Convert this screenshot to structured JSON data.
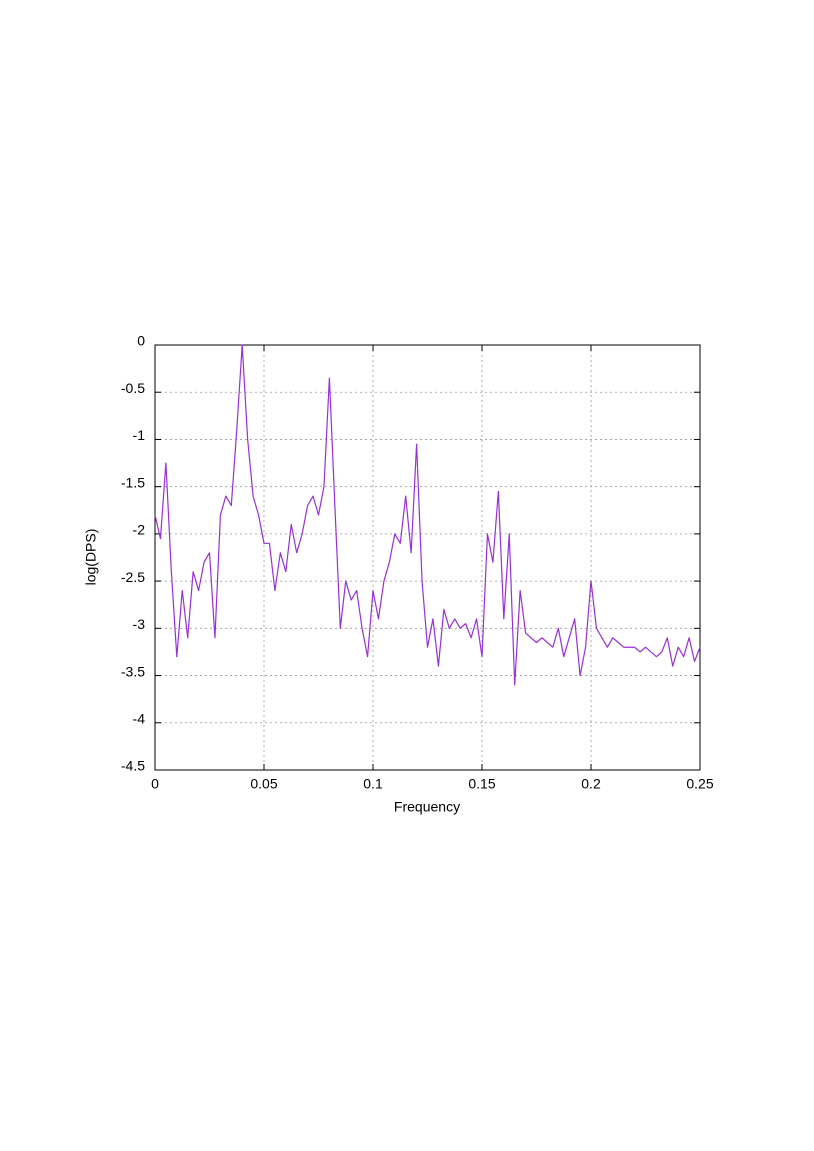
{
  "chart_data": {
    "type": "line",
    "xlabel": "Frequency",
    "ylabel": "log(DPS)",
    "x": [
      0,
      0.0025,
      0.005,
      0.0075,
      0.01,
      0.0125,
      0.015,
      0.0175,
      0.02,
      0.0225,
      0.025,
      0.0275,
      0.03,
      0.0325,
      0.035,
      0.0375,
      0.04,
      0.0425,
      0.045,
      0.0475,
      0.05,
      0.0525,
      0.055,
      0.0575,
      0.06,
      0.0625,
      0.065,
      0.0675,
      0.07,
      0.0725,
      0.075,
      0.0775,
      0.08,
      0.0825,
      0.085,
      0.0875,
      0.09,
      0.0925,
      0.095,
      0.0975,
      0.1,
      0.1025,
      0.105,
      0.1075,
      0.11,
      0.1125,
      0.115,
      0.1175,
      0.12,
      0.1225,
      0.125,
      0.1275,
      0.13,
      0.1325,
      0.135,
      0.1375,
      0.14,
      0.1425,
      0.145,
      0.1475,
      0.15,
      0.1525,
      0.155,
      0.1575,
      0.16,
      0.1625,
      0.165,
      0.1675,
      0.17,
      0.1725,
      0.175,
      0.1775,
      0.18,
      0.1825,
      0.185,
      0.1875,
      0.19,
      0.1925,
      0.195,
      0.1975,
      0.2,
      0.2025,
      0.205,
      0.2075,
      0.21,
      0.2125,
      0.215,
      0.2175,
      0.22,
      0.2225,
      0.225,
      0.2275,
      0.23,
      0.2325,
      0.235,
      0.2375,
      0.24,
      0.2425,
      0.245,
      0.2475,
      0.25
    ],
    "values": [
      -1.8,
      -2.05,
      -1.25,
      -2.4,
      -3.3,
      -2.6,
      -3.1,
      -2.4,
      -2.6,
      -2.3,
      -2.2,
      -3.1,
      -1.8,
      -1.6,
      -1.7,
      -0.9,
      0,
      -1.0,
      -1.6,
      -1.8,
      -2.1,
      -2.1,
      -2.6,
      -2.2,
      -2.4,
      -1.9,
      -2.2,
      -2.0,
      -1.7,
      -1.6,
      -1.8,
      -1.5,
      -0.35,
      -1.7,
      -3.0,
      -2.5,
      -2.7,
      -2.6,
      -3.0,
      -3.3,
      -2.6,
      -2.9,
      -2.5,
      -2.3,
      -2.0,
      -2.1,
      -1.6,
      -2.2,
      -1.05,
      -2.5,
      -3.2,
      -2.9,
      -3.4,
      -2.8,
      -3.0,
      -2.9,
      -3.0,
      -2.95,
      -3.1,
      -2.9,
      -3.3,
      -2.0,
      -2.3,
      -1.55,
      -2.9,
      -2.0,
      -3.6,
      -2.6,
      -3.05,
      -3.1,
      -3.15,
      -3.1,
      -3.15,
      -3.2,
      -3.0,
      -3.3,
      -3.1,
      -2.9,
      -3.5,
      -3.2,
      -2.5,
      -3.0,
      -3.1,
      -3.2,
      -3.1,
      -3.15,
      -3.2,
      -3.2,
      -3.2,
      -3.25,
      -3.2,
      -3.25,
      -3.3,
      -3.25,
      -3.1,
      -3.4,
      -3.2,
      -3.3,
      -3.1,
      -3.35,
      -3.2
    ],
    "color": "#9a2fd6",
    "xlim": [
      0,
      0.25
    ],
    "xticks": [
      0,
      0.05,
      0.1,
      0.15,
      0.2,
      0.25
    ],
    "ylim": [
      -4.5,
      0
    ],
    "yticks": [
      0,
      -0.5,
      -1,
      -1.5,
      -2,
      -2.5,
      -3,
      -3.5,
      -4,
      -4.5
    ],
    "grid": true
  }
}
